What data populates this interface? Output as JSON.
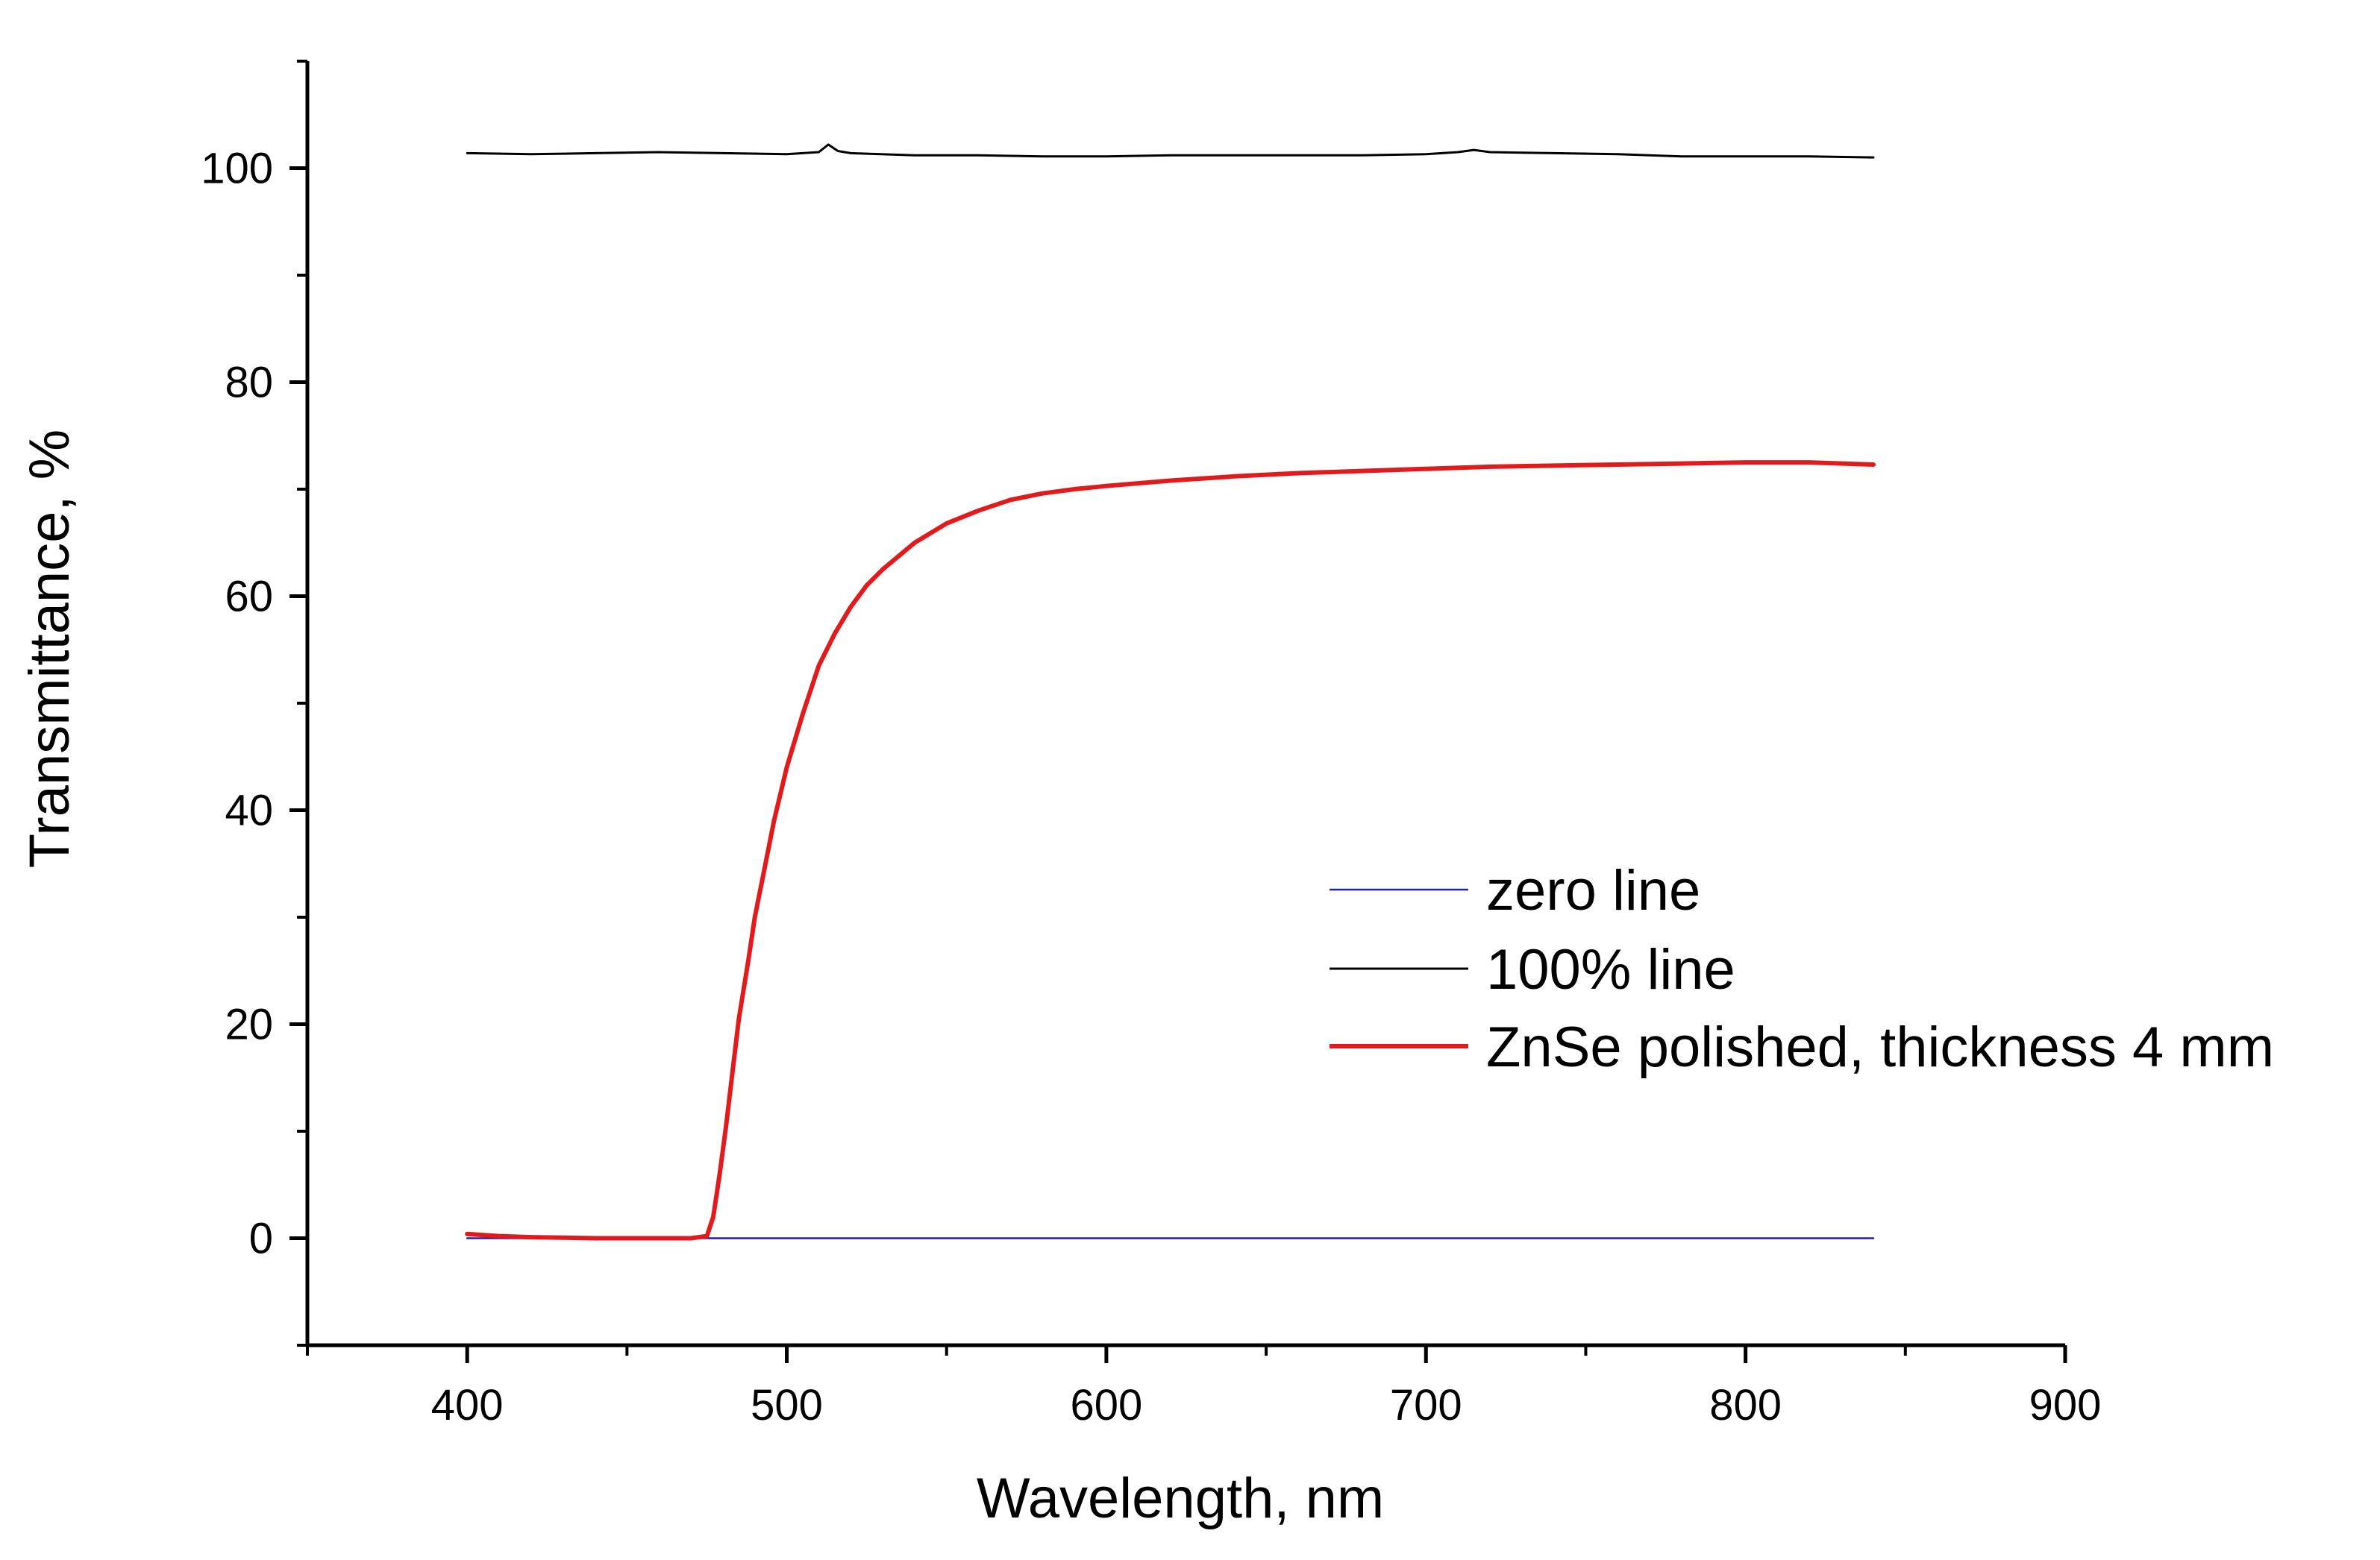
{
  "chart_data": {
    "type": "line",
    "title": "",
    "xlabel": "Wavelength, nm",
    "ylabel": "Transmittance, %",
    "xlim": [
      350,
      900
    ],
    "ylim": [
      -10,
      110
    ],
    "x_major_ticks": [
      400,
      500,
      600,
      700,
      800,
      900
    ],
    "x_minor_ticks": [
      350,
      450,
      550,
      650,
      750,
      850
    ],
    "y_major_ticks": [
      0,
      20,
      40,
      60,
      80,
      100
    ],
    "y_minor_ticks": [
      -10,
      10,
      30,
      50,
      70,
      90,
      110
    ],
    "x_tick_labels": [
      "400",
      "500",
      "600",
      "700",
      "800",
      "900"
    ],
    "y_tick_labels": [
      "0",
      "20",
      "40",
      "60",
      "80",
      "100"
    ],
    "grid": false,
    "legend_position": "center-right",
    "series": [
      {
        "name": "zero line",
        "color": "#1f1fb4",
        "x": [
          400,
          840
        ],
        "y": [
          0,
          0
        ]
      },
      {
        "name": "100% line",
        "color": "#000000",
        "x": [
          400,
          420,
          440,
          460,
          480,
          500,
          510,
          513,
          516,
          520,
          540,
          560,
          580,
          600,
          620,
          640,
          660,
          680,
          700,
          710,
          715,
          720,
          740,
          760,
          780,
          800,
          820,
          840
        ],
        "y": [
          101.4,
          101.3,
          101.4,
          101.5,
          101.4,
          101.3,
          101.5,
          102.2,
          101.6,
          101.4,
          101.2,
          101.2,
          101.1,
          101.1,
          101.2,
          101.2,
          101.2,
          101.2,
          101.3,
          101.5,
          101.7,
          101.5,
          101.4,
          101.3,
          101.1,
          101.1,
          101.1,
          101.0
        ]
      },
      {
        "name": "ZnSe polished, thickness 4 mm",
        "color": "#e31a1c",
        "x": [
          400,
          405,
          410,
          420,
          440,
          460,
          470,
          475,
          477,
          479,
          481,
          483,
          485,
          488,
          490,
          493,
          496,
          500,
          505,
          510,
          515,
          520,
          525,
          530,
          540,
          550,
          560,
          570,
          580,
          590,
          600,
          620,
          640,
          660,
          680,
          700,
          720,
          740,
          760,
          780,
          800,
          820,
          840
        ],
        "y": [
          0.4,
          0.3,
          0.2,
          0.1,
          0.0,
          0.0,
          0.0,
          0.2,
          2.0,
          6.0,
          10.5,
          15.5,
          20.5,
          26.0,
          30.0,
          34.5,
          39.0,
          44.0,
          49.0,
          53.5,
          56.5,
          59.0,
          61.0,
          62.5,
          65.0,
          66.8,
          68.0,
          69.0,
          69.6,
          70.0,
          70.3,
          70.8,
          71.2,
          71.5,
          71.7,
          71.9,
          72.1,
          72.2,
          72.3,
          72.4,
          72.5,
          72.5,
          72.3
        ]
      }
    ]
  }
}
